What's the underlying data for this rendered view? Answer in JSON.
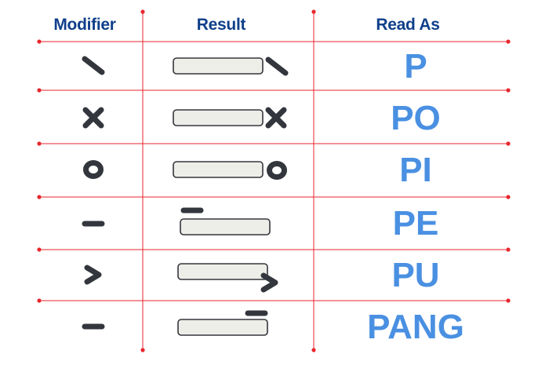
{
  "headers": {
    "modifier": "Modifier",
    "result": "Result",
    "read_as": "Read As"
  },
  "rows": [
    {
      "modifier_shape": "backslash-stroke-icon",
      "read_as": "P"
    },
    {
      "modifier_shape": "x-cross-icon",
      "read_as": "PO"
    },
    {
      "modifier_shape": "circle-o-icon",
      "read_as": "PI"
    },
    {
      "modifier_shape": "horizontal-dash-icon",
      "read_as": "PE"
    },
    {
      "modifier_shape": "chevron-right-icon",
      "read_as": "PU"
    },
    {
      "modifier_shape": "horizontal-dash-icon",
      "read_as": "PANG"
    }
  ],
  "colors": {
    "grid": "#e8262d",
    "header_text": "#0f3f8a",
    "read_text": "#4a90e2",
    "glyph": "#33363d",
    "bar_fill": "#eeeee8",
    "bar_stroke": "#33363d"
  }
}
